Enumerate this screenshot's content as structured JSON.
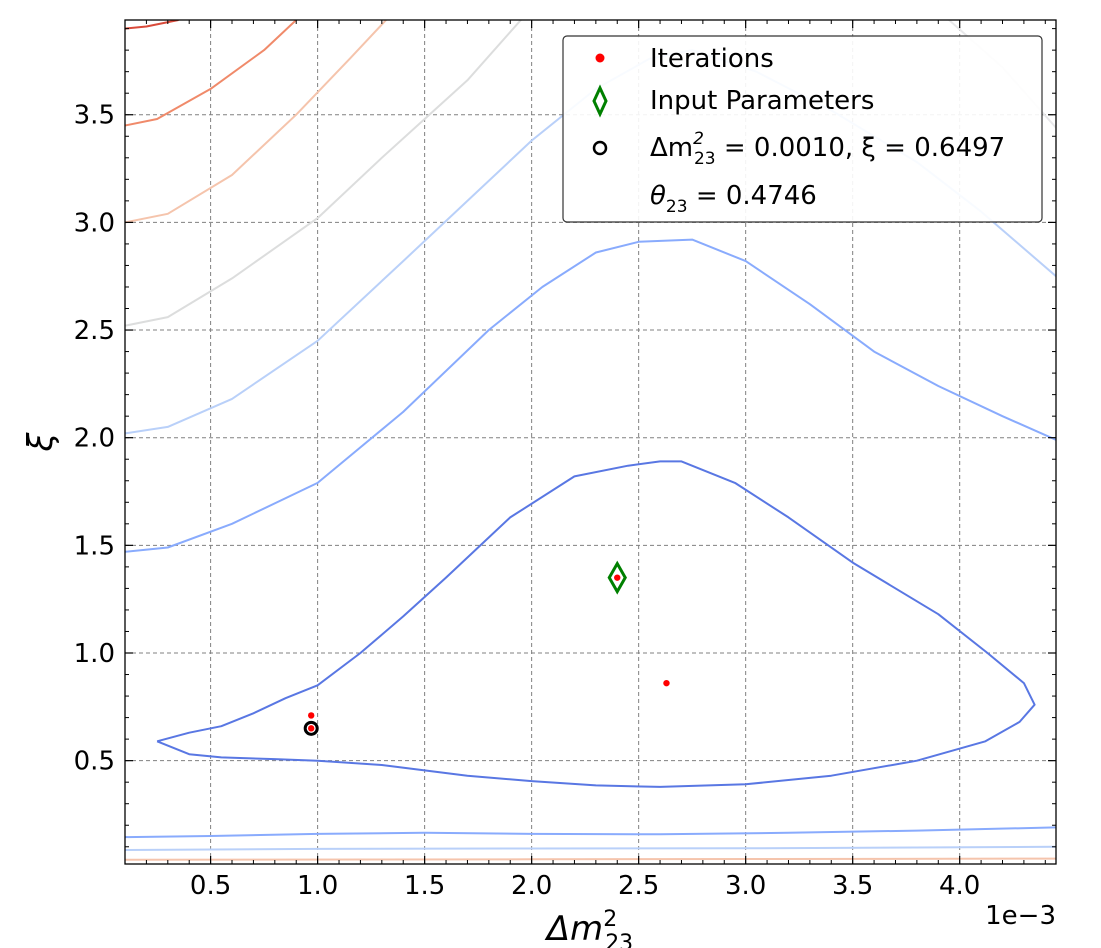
{
  "chart_data": {
    "type": "line",
    "subtype": "contour",
    "xlabel": "Δm",
    "xlabel_sup": "2",
    "xlabel_sub": "23",
    "ylabel": "ξ",
    "x_offset_text": "1e−3",
    "xlim": [
      0.1,
      4.45
    ],
    "ylim": [
      0.02,
      3.94
    ],
    "x_scale_factor": 0.001,
    "xticks": [
      0.5,
      1.0,
      1.5,
      2.0,
      2.5,
      3.0,
      3.5,
      4.0
    ],
    "xtick_labels": [
      "0.5",
      "1.0",
      "1.5",
      "2.0",
      "2.5",
      "3.0",
      "3.5",
      "4.0"
    ],
    "yticks": [
      0.5,
      1.0,
      1.5,
      2.0,
      2.5,
      3.0,
      3.5
    ],
    "ytick_labels": [
      "0.5",
      "1.0",
      "1.5",
      "2.0",
      "2.5",
      "3.0",
      "3.5"
    ],
    "grid": true,
    "legend_position": "top-right",
    "legend": {
      "entries": [
        {
          "label": "Iterations",
          "marker": "dot",
          "color": "#ff0000"
        },
        {
          "label": "Input Parameters",
          "marker": "diamond",
          "color": "#008000"
        },
        {
          "label_prefix": "Δm",
          "label_sup": "2",
          "label_sub": "23",
          "label_suffix": " = 0.0010, ξ = 0.6497",
          "marker": "circle",
          "color": "#000000"
        },
        {
          "label_prefix": "θ",
          "label_sub": "23",
          "label_suffix": " = 0.4746",
          "marker": "none"
        }
      ]
    },
    "iterations": [
      {
        "x": 0.97,
        "y": 0.71
      },
      {
        "x": 0.97,
        "y": 0.65
      },
      {
        "x": 2.4,
        "y": 1.35
      },
      {
        "x": 2.63,
        "y": 0.86
      }
    ],
    "input_parameters": {
      "x": 2.4,
      "y": 1.35
    },
    "best_fit": {
      "x": 0.97,
      "y": 0.65
    },
    "contours": [
      {
        "color": "#5977e3",
        "closed": false,
        "points": [
          [
            0.25,
            0.59
          ],
          [
            0.4,
            0.53
          ],
          [
            0.55,
            0.515
          ],
          [
            0.8,
            0.507
          ],
          [
            1.0,
            0.5
          ],
          [
            1.3,
            0.48
          ],
          [
            1.7,
            0.43
          ],
          [
            2.0,
            0.405
          ],
          [
            2.3,
            0.385
          ],
          [
            2.6,
            0.378
          ],
          [
            3.0,
            0.39
          ],
          [
            3.4,
            0.43
          ],
          [
            3.8,
            0.5
          ],
          [
            4.12,
            0.59
          ],
          [
            4.28,
            0.68
          ],
          [
            4.35,
            0.76
          ],
          [
            4.3,
            0.86
          ],
          [
            4.13,
            1.0
          ],
          [
            3.9,
            1.18
          ],
          [
            3.5,
            1.42
          ],
          [
            3.2,
            1.63
          ],
          [
            2.95,
            1.79
          ],
          [
            2.7,
            1.89
          ],
          [
            2.6,
            1.89
          ],
          [
            2.45,
            1.87
          ],
          [
            2.2,
            1.82
          ],
          [
            1.9,
            1.63
          ],
          [
            1.6,
            1.35
          ],
          [
            1.4,
            1.17
          ],
          [
            1.2,
            1.0
          ],
          [
            1.0,
            0.85
          ],
          [
            0.85,
            0.79
          ],
          [
            0.7,
            0.72
          ],
          [
            0.55,
            0.66
          ],
          [
            0.4,
            0.63
          ],
          [
            0.25,
            0.59
          ]
        ]
      },
      {
        "color": "#89abfd",
        "closed": false,
        "points": [
          [
            0.1,
            1.47
          ],
          [
            0.3,
            1.49
          ],
          [
            0.6,
            1.6
          ],
          [
            1.0,
            1.79
          ],
          [
            1.4,
            2.12
          ],
          [
            1.8,
            2.5
          ],
          [
            2.05,
            2.7
          ],
          [
            2.3,
            2.86
          ],
          [
            2.5,
            2.91
          ],
          [
            2.75,
            2.92
          ],
          [
            3.0,
            2.82
          ],
          [
            3.3,
            2.62
          ],
          [
            3.6,
            2.4
          ],
          [
            3.9,
            2.24
          ],
          [
            4.2,
            2.1
          ],
          [
            4.45,
            1.99
          ]
        ]
      },
      {
        "color": "#b9d0f9",
        "closed": false,
        "points": [
          [
            0.1,
            2.02
          ],
          [
            0.3,
            2.05
          ],
          [
            0.6,
            2.18
          ],
          [
            1.0,
            2.45
          ],
          [
            1.4,
            2.82
          ],
          [
            1.7,
            3.1
          ],
          [
            2.0,
            3.38
          ],
          [
            2.3,
            3.62
          ],
          [
            2.55,
            3.76
          ],
          [
            2.75,
            3.8
          ],
          [
            3.05,
            3.7
          ],
          [
            3.4,
            3.52
          ],
          [
            3.8,
            3.28
          ],
          [
            4.1,
            3.05
          ],
          [
            4.45,
            2.75
          ]
        ]
      },
      {
        "color": "#dcdddd",
        "closed": false,
        "points": [
          [
            0.1,
            2.52
          ],
          [
            0.3,
            2.56
          ],
          [
            0.6,
            2.74
          ],
          [
            1.0,
            3.02
          ],
          [
            1.3,
            3.3
          ],
          [
            1.7,
            3.66
          ],
          [
            1.95,
            3.94
          ]
        ]
      },
      {
        "color": "#e8e8ea",
        "closed": false,
        "points": [
          [
            3.95,
            3.94
          ],
          [
            4.2,
            3.72
          ],
          [
            4.45,
            3.44
          ]
        ]
      },
      {
        "color": "#f5c4ac",
        "closed": false,
        "points": [
          [
            0.1,
            3.0
          ],
          [
            0.3,
            3.04
          ],
          [
            0.6,
            3.22
          ],
          [
            0.9,
            3.5
          ],
          [
            1.15,
            3.76
          ],
          [
            1.32,
            3.94
          ]
        ]
      },
      {
        "color": "#f08a6a",
        "closed": false,
        "points": [
          [
            0.1,
            3.45
          ],
          [
            0.25,
            3.48
          ],
          [
            0.5,
            3.62
          ],
          [
            0.75,
            3.8
          ],
          [
            0.9,
            3.94
          ]
        ]
      },
      {
        "color": "#d94a3a",
        "closed": false,
        "points": [
          [
            0.1,
            3.9
          ],
          [
            0.2,
            3.91
          ],
          [
            0.35,
            3.94
          ]
        ]
      },
      {
        "color": "#89abfd",
        "closed": false,
        "points": [
          [
            0.1,
            0.145
          ],
          [
            0.5,
            0.15
          ],
          [
            1.0,
            0.16
          ],
          [
            1.5,
            0.165
          ],
          [
            2.0,
            0.16
          ],
          [
            2.6,
            0.158
          ],
          [
            3.2,
            0.165
          ],
          [
            3.8,
            0.175
          ],
          [
            4.45,
            0.19
          ]
        ]
      },
      {
        "color": "#b9d0f9",
        "closed": false,
        "points": [
          [
            0.1,
            0.085
          ],
          [
            1.0,
            0.09
          ],
          [
            2.0,
            0.092
          ],
          [
            3.0,
            0.093
          ],
          [
            4.45,
            0.1
          ]
        ]
      },
      {
        "color": "#f5c4ac",
        "closed": false,
        "points": [
          [
            0.1,
            0.04
          ],
          [
            2.0,
            0.042
          ],
          [
            4.45,
            0.045
          ]
        ]
      }
    ]
  }
}
